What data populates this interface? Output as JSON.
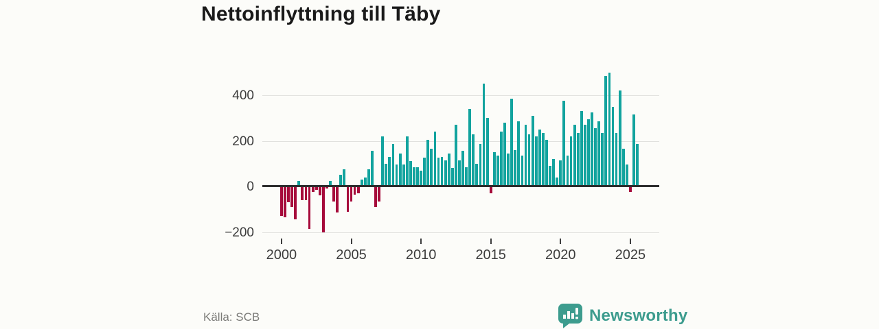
{
  "title": "Nettoinflyttning till Täby",
  "source": "Källa: SCB",
  "branding": {
    "name": "Newsworthy",
    "icon": "speech-bubble-bar-chart-icon",
    "color": "#3d9c8e"
  },
  "colors": {
    "positive": "#12a39e",
    "negative": "#a60b3b",
    "zero_line": "#2d2d2d",
    "grid": "#e1e1de"
  },
  "chart_data": {
    "type": "bar",
    "title": "Nettoinflyttning till Täby",
    "frequency": "quarterly",
    "start_year": 2000,
    "start_quarter": 1,
    "xlabel": "",
    "ylabel": "",
    "grid": true,
    "ylim": [
      -230,
      520
    ],
    "y_ticks": [
      400,
      200,
      0,
      -200
    ],
    "y_tick_labels": [
      "400",
      "200",
      "0",
      "−200"
    ],
    "x_tick_years": [
      2000,
      2005,
      2010,
      2015,
      2020,
      2025
    ],
    "x_tick_labels": [
      "2000",
      "2005",
      "2010",
      "2015",
      "2020",
      "2025"
    ],
    "values": [
      -130,
      -135,
      -70,
      -90,
      -145,
      25,
      -60,
      -60,
      -185,
      -25,
      -15,
      -40,
      -200,
      -10,
      25,
      -65,
      -115,
      50,
      75,
      -110,
      -65,
      -35,
      -30,
      30,
      40,
      75,
      155,
      -90,
      -65,
      220,
      100,
      130,
      185,
      95,
      145,
      95,
      220,
      110,
      85,
      85,
      70,
      125,
      205,
      165,
      240,
      125,
      130,
      115,
      145,
      80,
      270,
      115,
      155,
      85,
      340,
      230,
      100,
      185,
      450,
      300,
      -30,
      150,
      135,
      240,
      280,
      145,
      385,
      160,
      285,
      135,
      270,
      230,
      310,
      220,
      250,
      235,
      205,
      90,
      120,
      40,
      115,
      375,
      135,
      220,
      270,
      235,
      330,
      270,
      295,
      325,
      255,
      285,
      235,
      485,
      500,
      350,
      235,
      420,
      165,
      95,
      -25,
      315,
      185
    ]
  }
}
